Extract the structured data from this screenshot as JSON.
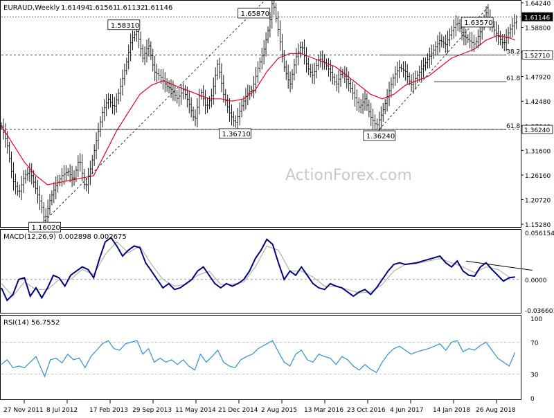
{
  "chart_data": {
    "type": "candlestick",
    "title": "EURAUD,Weekly",
    "ohlc_header": [
      "1.61494",
      "1.61561",
      "1.61132",
      "1.61146"
    ],
    "watermark": "ActionForex.com",
    "colors": {
      "candle": "#000000",
      "ma": "#e8001c",
      "macd": "#000080",
      "signal": "#b0b0b0",
      "rsi": "#2f8fd8",
      "trend_dashed": "#000000",
      "last_price_box": "#000000"
    },
    "price_axis": {
      "ylim": [
        1.1528,
        1.6424
      ],
      "ticks": [
        "1.64240",
        "1.58800",
        "1.53360",
        "1.47920",
        "1.42480",
        "1.37040",
        "1.31600",
        "1.26160",
        "1.20720",
        "1.15280"
      ]
    },
    "last_price": "1.61146",
    "level_labels": [
      "1.52710",
      "1.36240"
    ],
    "x_labels": [
      "27 Nov 2011",
      "8 Jul 2012",
      "17 Feb 2013",
      "29 Sep 2013",
      "11 May 2014",
      "21 Dec 2014",
      "2 Aug 2015",
      "13 Mar 2016",
      "23 Oct 2016",
      "4 Jun 2017",
      "14 Jan 2018",
      "26 Aug 2018"
    ],
    "price_path": [
      [
        0,
        1.37
      ],
      [
        4,
        1.33
      ],
      [
        8,
        1.25
      ],
      [
        12,
        1.22
      ],
      [
        16,
        1.26
      ],
      [
        20,
        1.27
      ],
      [
        24,
        1.23
      ],
      [
        28,
        1.19
      ],
      [
        30,
        1.16
      ],
      [
        34,
        1.21
      ],
      [
        38,
        1.24
      ],
      [
        42,
        1.26
      ],
      [
        46,
        1.27
      ],
      [
        50,
        1.25
      ],
      [
        54,
        1.3
      ],
      [
        58,
        1.23
      ],
      [
        62,
        1.28
      ],
      [
        66,
        1.34
      ],
      [
        70,
        1.4
      ],
      [
        74,
        1.43
      ],
      [
        78,
        1.41
      ],
      [
        82,
        1.45
      ],
      [
        86,
        1.5
      ],
      [
        90,
        1.56
      ],
      [
        94,
        1.58
      ],
      [
        98,
        1.52
      ],
      [
        102,
        1.55
      ],
      [
        106,
        1.49
      ],
      [
        110,
        1.48
      ],
      [
        114,
        1.46
      ],
      [
        118,
        1.45
      ],
      [
        122,
        1.43
      ],
      [
        126,
        1.45
      ],
      [
        130,
        1.42
      ],
      [
        134,
        1.38
      ],
      [
        138,
        1.45
      ],
      [
        142,
        1.41
      ],
      [
        146,
        1.44
      ],
      [
        150,
        1.51
      ],
      [
        154,
        1.44
      ],
      [
        158,
        1.4
      ],
      [
        162,
        1.375
      ],
      [
        166,
        1.41
      ],
      [
        170,
        1.44
      ],
      [
        174,
        1.45
      ],
      [
        178,
        1.5
      ],
      [
        182,
        1.54
      ],
      [
        186,
        1.6
      ],
      [
        188,
        1.65
      ],
      [
        192,
        1.58
      ],
      [
        196,
        1.5
      ],
      [
        200,
        1.46
      ],
      [
        204,
        1.52
      ],
      [
        208,
        1.55
      ],
      [
        212,
        1.5
      ],
      [
        216,
        1.48
      ],
      [
        220,
        1.52
      ],
      [
        224,
        1.51
      ],
      [
        228,
        1.49
      ],
      [
        232,
        1.46
      ],
      [
        236,
        1.49
      ],
      [
        240,
        1.47
      ],
      [
        244,
        1.44
      ],
      [
        248,
        1.41
      ],
      [
        252,
        1.43
      ],
      [
        256,
        1.39
      ],
      [
        260,
        1.37
      ],
      [
        264,
        1.4
      ],
      [
        268,
        1.44
      ],
      [
        272,
        1.48
      ],
      [
        276,
        1.5
      ],
      [
        280,
        1.49
      ],
      [
        284,
        1.46
      ],
      [
        288,
        1.48
      ],
      [
        292,
        1.5
      ],
      [
        296,
        1.52
      ],
      [
        300,
        1.54
      ],
      [
        304,
        1.56
      ],
      [
        308,
        1.55
      ],
      [
        312,
        1.58
      ],
      [
        316,
        1.6
      ],
      [
        320,
        1.57
      ],
      [
        324,
        1.56
      ],
      [
        328,
        1.55
      ],
      [
        332,
        1.58
      ],
      [
        336,
        1.62
      ],
      [
        340,
        1.59
      ],
      [
        344,
        1.57
      ],
      [
        348,
        1.55
      ],
      [
        352,
        1.58
      ],
      [
        356,
        1.6
      ]
    ],
    "ma_path": [
      [
        0,
        1.37
      ],
      [
        8,
        1.33
      ],
      [
        16,
        1.29
      ],
      [
        24,
        1.26
      ],
      [
        32,
        1.24
      ],
      [
        40,
        1.245
      ],
      [
        48,
        1.25
      ],
      [
        56,
        1.255
      ],
      [
        64,
        1.26
      ],
      [
        72,
        1.31
      ],
      [
        80,
        1.36
      ],
      [
        88,
        1.4
      ],
      [
        96,
        1.44
      ],
      [
        104,
        1.46
      ],
      [
        112,
        1.47
      ],
      [
        120,
        1.46
      ],
      [
        128,
        1.45
      ],
      [
        136,
        1.44
      ],
      [
        144,
        1.43
      ],
      [
        152,
        1.43
      ],
      [
        160,
        1.425
      ],
      [
        168,
        1.43
      ],
      [
        176,
        1.45
      ],
      [
        184,
        1.49
      ],
      [
        192,
        1.52
      ],
      [
        200,
        1.53
      ],
      [
        208,
        1.53
      ],
      [
        216,
        1.52
      ],
      [
        224,
        1.51
      ],
      [
        232,
        1.5
      ],
      [
        240,
        1.48
      ],
      [
        248,
        1.46
      ],
      [
        256,
        1.44
      ],
      [
        264,
        1.43
      ],
      [
        272,
        1.44
      ],
      [
        280,
        1.46
      ],
      [
        288,
        1.47
      ],
      [
        296,
        1.48
      ],
      [
        304,
        1.5
      ],
      [
        312,
        1.52
      ],
      [
        320,
        1.53
      ],
      [
        328,
        1.54
      ],
      [
        336,
        1.56
      ],
      [
        344,
        1.57
      ],
      [
        352,
        1.565
      ],
      [
        356,
        1.56
      ]
    ],
    "extreme_labels": [
      {
        "label": "1.16020",
        "x": 30,
        "y": 1.1602
      },
      {
        "label": "1.58310",
        "x": 94,
        "y": 1.5831
      },
      {
        "label": "1.36710",
        "x": 162,
        "y": 1.3671
      },
      {
        "label": "1.65870",
        "x": 188,
        "y": 1.6587
      },
      {
        "label": "1.36240",
        "x": 262,
        "y": 1.3624
      },
      {
        "label": "1.63570",
        "x": 338,
        "y": 1.6357
      }
    ],
    "fib_levels": [
      {
        "label": "38.2",
        "y": 1.5271
      },
      {
        "label": "61.8",
        "y": 1.468
      },
      {
        "label": "61.8",
        "y": 1.3624
      }
    ],
    "macd": {
      "title": "MACD(12,26,9) 0.002898 0.002675",
      "ylim": [
        -0.036601,
        0.056154
      ],
      "ticks": [
        "0.056154",
        "0.00",
        "-0.036601"
      ],
      "zero_label": "0.0000",
      "macd_path": [
        [
          0,
          -0.01
        ],
        [
          4,
          -0.025
        ],
        [
          8,
          -0.018
        ],
        [
          12,
          0.0
        ],
        [
          16,
          0.002
        ],
        [
          20,
          -0.02
        ],
        [
          24,
          -0.01
        ],
        [
          28,
          -0.022
        ],
        [
          32,
          -0.01
        ],
        [
          36,
          0.005
        ],
        [
          40,
          0.002
        ],
        [
          44,
          -0.008
        ],
        [
          48,
          0.005
        ],
        [
          52,
          0.01
        ],
        [
          56,
          0.015
        ],
        [
          60,
          0.012
        ],
        [
          64,
          0.002
        ],
        [
          68,
          0.025
        ],
        [
          72,
          0.045
        ],
        [
          76,
          0.05
        ],
        [
          80,
          0.04
        ],
        [
          84,
          0.028
        ],
        [
          88,
          0.035
        ],
        [
          92,
          0.04
        ],
        [
          96,
          0.038
        ],
        [
          100,
          0.02
        ],
        [
          104,
          0.01
        ],
        [
          108,
          0.0
        ],
        [
          112,
          -0.01
        ],
        [
          116,
          -0.005
        ],
        [
          120,
          -0.012
        ],
        [
          124,
          -0.01
        ],
        [
          128,
          -0.005
        ],
        [
          132,
          0.0
        ],
        [
          136,
          0.01
        ],
        [
          140,
          0.015
        ],
        [
          144,
          0.005
        ],
        [
          148,
          -0.005
        ],
        [
          152,
          -0.01
        ],
        [
          156,
          -0.005
        ],
        [
          160,
          -0.008
        ],
        [
          164,
          -0.005
        ],
        [
          168,
          0.0
        ],
        [
          172,
          0.01
        ],
        [
          176,
          0.025
        ],
        [
          180,
          0.035
        ],
        [
          184,
          0.048
        ],
        [
          188,
          0.042
        ],
        [
          192,
          0.02
        ],
        [
          196,
          0.0
        ],
        [
          200,
          0.01
        ],
        [
          204,
          0.005
        ],
        [
          208,
          0.015
        ],
        [
          212,
          0.005
        ],
        [
          216,
          -0.005
        ],
        [
          220,
          -0.01
        ],
        [
          224,
          -0.012
        ],
        [
          228,
          -0.005
        ],
        [
          232,
          -0.008
        ],
        [
          236,
          -0.01
        ],
        [
          240,
          -0.015
        ],
        [
          244,
          -0.02
        ],
        [
          248,
          -0.015
        ],
        [
          252,
          -0.012
        ],
        [
          256,
          -0.018
        ],
        [
          260,
          -0.01
        ],
        [
          264,
          0.0
        ],
        [
          268,
          0.01
        ],
        [
          272,
          0.018
        ],
        [
          276,
          0.02
        ],
        [
          280,
          0.018
        ],
        [
          284,
          0.019
        ],
        [
          288,
          0.02
        ],
        [
          292,
          0.022
        ],
        [
          296,
          0.024
        ],
        [
          300,
          0.026
        ],
        [
          304,
          0.028
        ],
        [
          308,
          0.02
        ],
        [
          312,
          0.015
        ],
        [
          316,
          0.022
        ],
        [
          320,
          0.01
        ],
        [
          324,
          0.005
        ],
        [
          328,
          0.004
        ],
        [
          332,
          0.015
        ],
        [
          336,
          0.02
        ],
        [
          340,
          0.012
        ],
        [
          344,
          0.005
        ],
        [
          348,
          -0.002
        ],
        [
          352,
          0.002
        ],
        [
          356,
          0.002898
        ]
      ],
      "signal_path": [
        [
          0,
          -0.005
        ],
        [
          8,
          -0.02
        ],
        [
          16,
          -0.003
        ],
        [
          24,
          -0.012
        ],
        [
          32,
          -0.012
        ],
        [
          40,
          0.0
        ],
        [
          48,
          0.0
        ],
        [
          56,
          0.012
        ],
        [
          64,
          0.006
        ],
        [
          72,
          0.03
        ],
        [
          80,
          0.045
        ],
        [
          88,
          0.032
        ],
        [
          96,
          0.04
        ],
        [
          104,
          0.018
        ],
        [
          112,
          0.0
        ],
        [
          120,
          -0.008
        ],
        [
          128,
          -0.006
        ],
        [
          136,
          0.005
        ],
        [
          144,
          0.01
        ],
        [
          152,
          -0.006
        ],
        [
          160,
          -0.006
        ],
        [
          168,
          -0.003
        ],
        [
          176,
          0.015
        ],
        [
          184,
          0.04
        ],
        [
          192,
          0.035
        ],
        [
          200,
          0.01
        ],
        [
          208,
          0.01
        ],
        [
          216,
          0.003
        ],
        [
          224,
          -0.008
        ],
        [
          232,
          -0.008
        ],
        [
          240,
          -0.012
        ],
        [
          248,
          -0.016
        ],
        [
          256,
          -0.015
        ],
        [
          264,
          -0.006
        ],
        [
          272,
          0.01
        ],
        [
          280,
          0.018
        ],
        [
          288,
          0.019
        ],
        [
          296,
          0.022
        ],
        [
          304,
          0.025
        ],
        [
          312,
          0.02
        ],
        [
          320,
          0.015
        ],
        [
          328,
          0.008
        ],
        [
          336,
          0.015
        ],
        [
          344,
          0.012
        ],
        [
          352,
          0.003
        ],
        [
          356,
          0.002675
        ]
      ],
      "trend": [
        [
          322,
          0.022
        ],
        [
          368,
          0.011
        ]
      ]
    },
    "rsi": {
      "title": "RSI(14) 56.7552",
      "ylim": [
        0,
        100
      ],
      "ticks": [
        "100",
        "70",
        "30",
        "0"
      ],
      "path": [
        [
          0,
          42
        ],
        [
          4,
          48
        ],
        [
          8,
          38
        ],
        [
          12,
          40
        ],
        [
          16,
          38
        ],
        [
          20,
          45
        ],
        [
          24,
          52
        ],
        [
          28,
          35
        ],
        [
          30,
          27
        ],
        [
          34,
          48
        ],
        [
          38,
          50
        ],
        [
          42,
          44
        ],
        [
          46,
          55
        ],
        [
          50,
          48
        ],
        [
          54,
          50
        ],
        [
          58,
          38
        ],
        [
          62,
          52
        ],
        [
          66,
          60
        ],
        [
          70,
          68
        ],
        [
          74,
          72
        ],
        [
          78,
          62
        ],
        [
          82,
          60
        ],
        [
          86,
          68
        ],
        [
          90,
          70
        ],
        [
          94,
          72
        ],
        [
          98,
          55
        ],
        [
          102,
          62
        ],
        [
          106,
          45
        ],
        [
          110,
          50
        ],
        [
          114,
          45
        ],
        [
          118,
          48
        ],
        [
          122,
          42
        ],
        [
          126,
          48
        ],
        [
          130,
          40
        ],
        [
          134,
          35
        ],
        [
          138,
          55
        ],
        [
          142,
          45
        ],
        [
          146,
          52
        ],
        [
          150,
          60
        ],
        [
          154,
          45
        ],
        [
          158,
          40
        ],
        [
          162,
          38
        ],
        [
          166,
          48
        ],
        [
          170,
          52
        ],
        [
          174,
          55
        ],
        [
          178,
          62
        ],
        [
          182,
          66
        ],
        [
          186,
          70
        ],
        [
          188,
          72
        ],
        [
          192,
          58
        ],
        [
          196,
          45
        ],
        [
          200,
          40
        ],
        [
          204,
          55
        ],
        [
          208,
          60
        ],
        [
          212,
          48
        ],
        [
          216,
          45
        ],
        [
          220,
          55
        ],
        [
          224,
          52
        ],
        [
          228,
          50
        ],
        [
          232,
          42
        ],
        [
          236,
          52
        ],
        [
          240,
          48
        ],
        [
          244,
          40
        ],
        [
          248,
          35
        ],
        [
          252,
          42
        ],
        [
          256,
          36
        ],
        [
          260,
          32
        ],
        [
          264,
          45
        ],
        [
          268,
          55
        ],
        [
          272,
          62
        ],
        [
          276,
          65
        ],
        [
          280,
          60
        ],
        [
          284,
          55
        ],
        [
          288,
          58
        ],
        [
          292,
          60
        ],
        [
          296,
          62
        ],
        [
          300,
          65
        ],
        [
          304,
          68
        ],
        [
          308,
          60
        ],
        [
          312,
          70
        ],
        [
          316,
          72
        ],
        [
          320,
          58
        ],
        [
          324,
          62
        ],
        [
          328,
          60
        ],
        [
          332,
          66
        ],
        [
          336,
          70
        ],
        [
          340,
          60
        ],
        [
          344,
          50
        ],
        [
          348,
          45
        ],
        [
          352,
          40
        ],
        [
          356,
          57
        ]
      ]
    }
  }
}
